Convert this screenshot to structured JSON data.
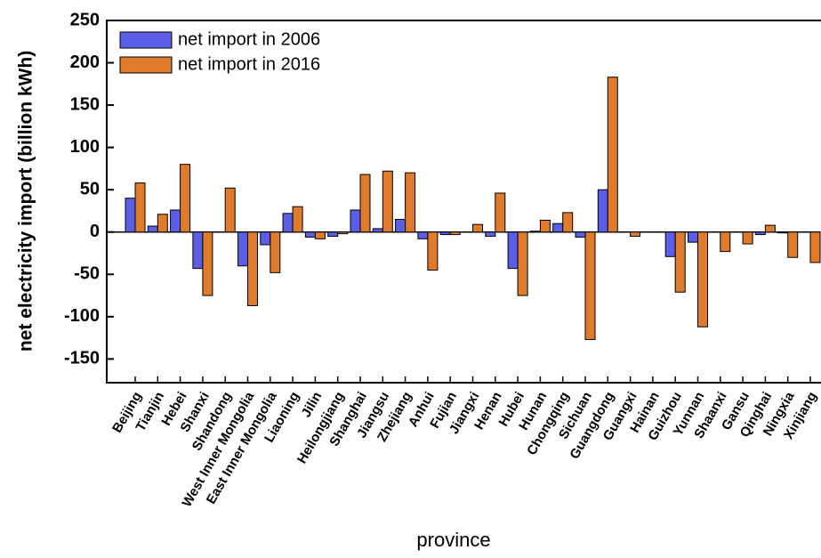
{
  "chart_data": {
    "type": "bar",
    "x_label": "province",
    "y_label": "net electricity import (billion kWh)",
    "categories": [
      "Beijing",
      "Tianjin",
      "Hebei",
      "Shanxi",
      "Shandong",
      "West Inner Mongolia",
      "East Inner Mongolia",
      "Liaoning",
      "Jilin",
      "Heilongjiang",
      "Shanghai",
      "Jiangsu",
      "Zhejiang",
      "Anhui",
      "Fujian",
      "Jiangxi",
      "Henan",
      "Hubei",
      "Hunan",
      "Chongqing",
      "Sichuan",
      "Guangdong",
      "Guangxi",
      "Hainan",
      "Guizhou",
      "Yunnan",
      "Shaanxi",
      "Gansu",
      "Qinghai",
      "Ningxia",
      "Xinjiang"
    ],
    "series": [
      {
        "name": "net import in 2006",
        "color": "#5b5fe8",
        "values": [
          40,
          7,
          26,
          -43,
          0,
          -40,
          -15,
          22,
          -6,
          -5,
          26,
          4,
          15,
          -8,
          -3,
          0,
          -5,
          -43,
          1,
          10,
          -6,
          50,
          0,
          0,
          -29,
          -12,
          0,
          0,
          -3,
          -1,
          0
        ]
      },
      {
        "name": "net import in 2016",
        "color": "#e07b2c",
        "values": [
          58,
          21,
          80,
          -75,
          52,
          -87,
          -48,
          30,
          -8,
          -2,
          68,
          72,
          70,
          -45,
          -3,
          9,
          46,
          -75,
          14,
          23,
          -127,
          183,
          -5,
          0,
          -71,
          -112,
          -23,
          -14,
          8,
          -30,
          -36
        ]
      }
    ],
    "ylim": [
      -178,
      250
    ],
    "yticks": [
      -150,
      -100,
      -50,
      0,
      50,
      100,
      150,
      200,
      250
    ],
    "legend": "upper left"
  }
}
